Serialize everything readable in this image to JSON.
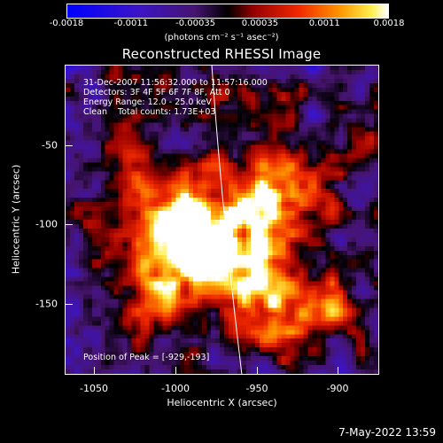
{
  "colorbar": {
    "ticks": [
      "-0.0018",
      "-0.0011",
      "-0.00035",
      "0.00035",
      "0.0011",
      "0.0018"
    ],
    "units_label": "(photons cm⁻² s⁻¹ asec⁻²)"
  },
  "title": "Reconstructed RHESSI Image",
  "info": {
    "line1": "31-Dec-2007 11:56:32.000 to 11:57:16.000",
    "line2": "Detectors: 3F 4F 5F 6F 7F 8F, Att 0",
    "line3": "Energy Range: 12.0 - 25.0 keV",
    "line4": "Clean    Total counts: 1.73E+03",
    "peak": "Position of Peak = [-929,-193]"
  },
  "axes": {
    "xlabel": "Heliocentric X (arcsec)",
    "ylabel": "Heliocentric Y (arcsec)",
    "xticks": [
      "-1050",
      "-1000",
      "-950",
      "-900"
    ],
    "yticks": [
      "-50",
      "-100",
      "-150"
    ]
  },
  "timestamp": "7-May-2022 13:59",
  "colors": {
    "background": "#000000",
    "limb_line": "#ffffff"
  }
}
